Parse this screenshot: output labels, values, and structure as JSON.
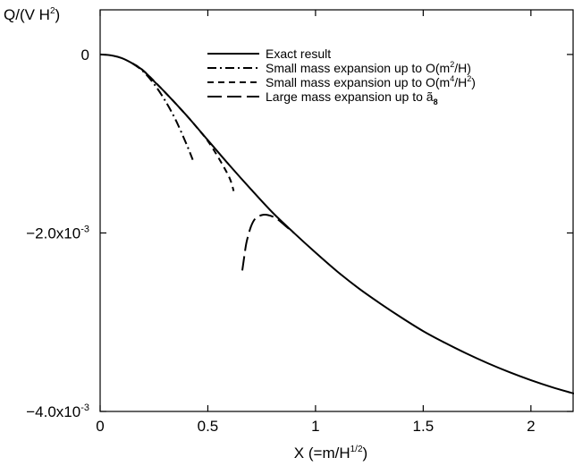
{
  "chart_data": {
    "type": "line",
    "ylabel": "Q/(V H²)",
    "xlabel": "X (=m/H^{1/2})",
    "xlim": [
      0,
      2.2
    ],
    "ylim": [
      -0.004,
      0.0005
    ],
    "x_ticks": [
      0,
      0.5,
      1,
      1.5,
      2
    ],
    "x_tick_labels": [
      "0",
      "0.5",
      "1",
      "1.5",
      "2"
    ],
    "y_ticks": [
      0,
      -0.002,
      -0.004
    ],
    "y_tick_labels": [
      "0",
      "-2.0x10^{-3}",
      "-4.0x10^{-3}"
    ],
    "grid": false,
    "legend_position": "top-right",
    "series": [
      {
        "name": "Exact result",
        "style": "solid",
        "x": [
          0,
          0.05,
          0.1,
          0.15,
          0.2,
          0.25,
          0.3,
          0.4,
          0.5,
          0.6,
          0.7,
          0.8,
          0.9,
          1.0,
          1.1,
          1.2,
          1.3,
          1.4,
          1.5,
          1.6,
          1.7,
          1.8,
          1.9,
          2.0,
          2.1,
          2.2
        ],
        "y": [
          0,
          -1e-05,
          -4e-05,
          -0.0001,
          -0.00018,
          -0.0003,
          -0.00042,
          -0.00068,
          -0.00096,
          -0.00124,
          -0.00151,
          -0.00177,
          -0.002,
          -0.00222,
          -0.00243,
          -0.00262,
          -0.00279,
          -0.00295,
          -0.0031,
          -0.00323,
          -0.00335,
          -0.00346,
          -0.00356,
          -0.00365,
          -0.00373,
          -0.0038
        ]
      },
      {
        "name": "Small mass expansion up to O(m²/H)",
        "style": "dashdot",
        "x": [
          0.15,
          0.2,
          0.25,
          0.3,
          0.35,
          0.4,
          0.43
        ],
        "y": [
          -0.0001,
          -0.00019,
          -0.00033,
          -0.00051,
          -0.00073,
          -0.001,
          -0.00118
        ]
      },
      {
        "name": "Small mass expansion up to O(m⁴/H²)",
        "style": "dashed",
        "x": [
          0.15,
          0.2,
          0.3,
          0.4,
          0.45,
          0.5,
          0.55,
          0.6,
          0.62
        ],
        "y": [
          -0.0001,
          -0.00018,
          -0.00042,
          -0.00068,
          -0.00082,
          -0.00097,
          -0.00116,
          -0.00138,
          -0.00153
        ]
      },
      {
        "name": "Large mass expansion up to ã₈",
        "style": "longdash",
        "x": [
          0.66,
          0.67,
          0.68,
          0.7,
          0.72,
          0.75,
          0.78,
          0.82,
          0.86,
          0.9
        ],
        "y": [
          -0.00242,
          -0.00225,
          -0.0021,
          -0.00193,
          -0.00184,
          -0.0018,
          -0.0018,
          -0.00184,
          -0.00192,
          -0.002
        ]
      }
    ]
  }
}
